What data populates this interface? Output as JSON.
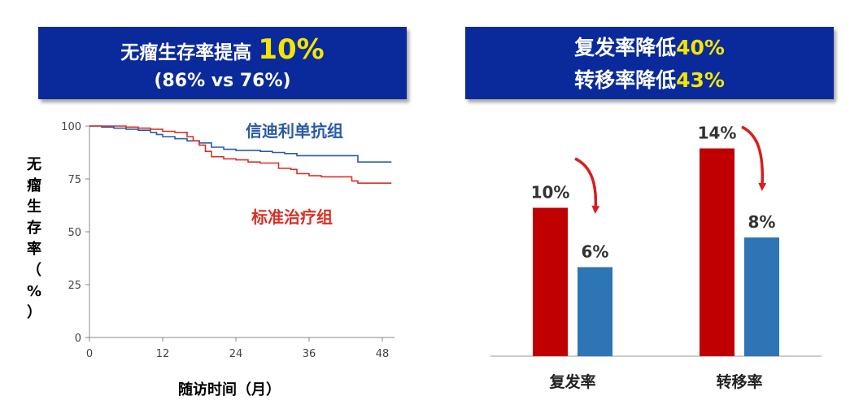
{
  "banner_left": {
    "line1_text": "无瘤生存率提高",
    "line1_highlight": "10%",
    "line2": "(86% vs 76%)"
  },
  "banner_right": {
    "line1_text": "复发率降低",
    "line1_highlight": "40%",
    "line2_text": "转移率降低",
    "line2_highlight": "43%"
  },
  "colors": {
    "banner_bg": "#0a2a9c",
    "highlight": "#f5e600",
    "blue_series": "#2a5aa8",
    "red_series": "#d93025",
    "bar_red": "#c00000",
    "bar_blue": "#2e75b6"
  },
  "chart_data": [
    {
      "type": "line",
      "ylabel": "无瘤生存率（%）",
      "xlabel": "随访时间（月）",
      "xlim": [
        0,
        50
      ],
      "ylim": [
        0,
        100
      ],
      "xticks": [
        0,
        12,
        24,
        36,
        48
      ],
      "yticks": [
        0,
        25,
        50,
        75,
        100
      ],
      "series": [
        {
          "name": "信迪利单抗组",
          "x": [
            0,
            2,
            4,
            6,
            8,
            10,
            11,
            12,
            14,
            16,
            18,
            20,
            22,
            24,
            26,
            28,
            30,
            32,
            34,
            36,
            38,
            40,
            42,
            44,
            46,
            48,
            49.5
          ],
          "y": [
            100,
            99.5,
            99,
            98.5,
            98,
            97,
            96,
            95,
            94,
            93,
            92,
            90,
            89,
            88.5,
            88.5,
            88,
            87.5,
            87,
            86,
            86,
            86,
            86,
            86,
            83,
            83,
            83,
            83
          ]
        },
        {
          "name": "标准治疗组",
          "x": [
            0,
            2,
            4,
            6,
            8,
            10,
            12,
            14,
            16,
            17,
            18,
            19,
            20,
            22,
            24,
            26,
            28,
            30,
            31,
            33,
            34,
            36,
            38,
            40,
            42,
            43,
            44,
            46,
            48,
            49.5
          ],
          "y": [
            100,
            100,
            100,
            99.5,
            99,
            98.5,
            97.5,
            97,
            95,
            93,
            91,
            88,
            85.5,
            84.5,
            84,
            83,
            82.5,
            82.5,
            80,
            79.5,
            77.5,
            76.5,
            76,
            76,
            76,
            74,
            73,
            73,
            73,
            73
          ]
        }
      ]
    },
    {
      "type": "bar",
      "categories": [
        "复发率",
        "转移率"
      ],
      "series": [
        {
          "values": [
            10,
            14
          ]
        },
        {
          "values": [
            6,
            8
          ]
        }
      ],
      "value_labels": [
        [
          "10%",
          "14%"
        ],
        [
          "6%",
          "8%"
        ]
      ],
      "ylim": [
        0,
        16
      ]
    }
  ]
}
